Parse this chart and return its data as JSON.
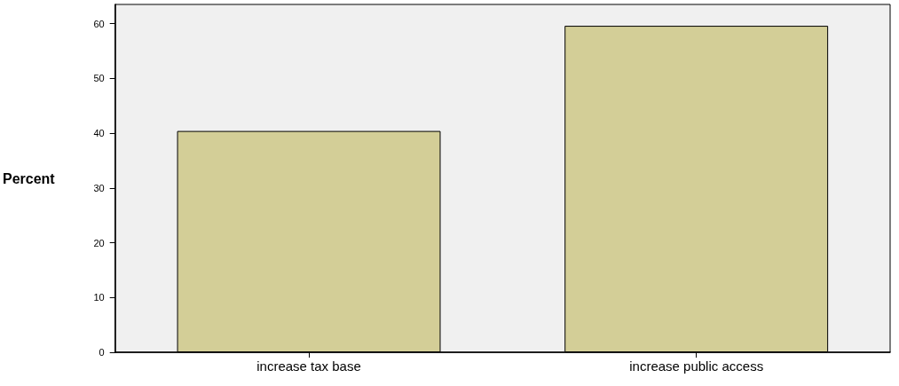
{
  "chart_data": {
    "type": "bar",
    "ylabel": "Percent",
    "categories": [
      "increase tax base",
      "increase public access"
    ],
    "values": [
      40.4,
      59.6
    ],
    "color": "#d3ce97",
    "ylim": [
      0,
      63.5
    ],
    "yticks": [
      0,
      10,
      20,
      30,
      40,
      50,
      60
    ],
    "grid": false
  }
}
